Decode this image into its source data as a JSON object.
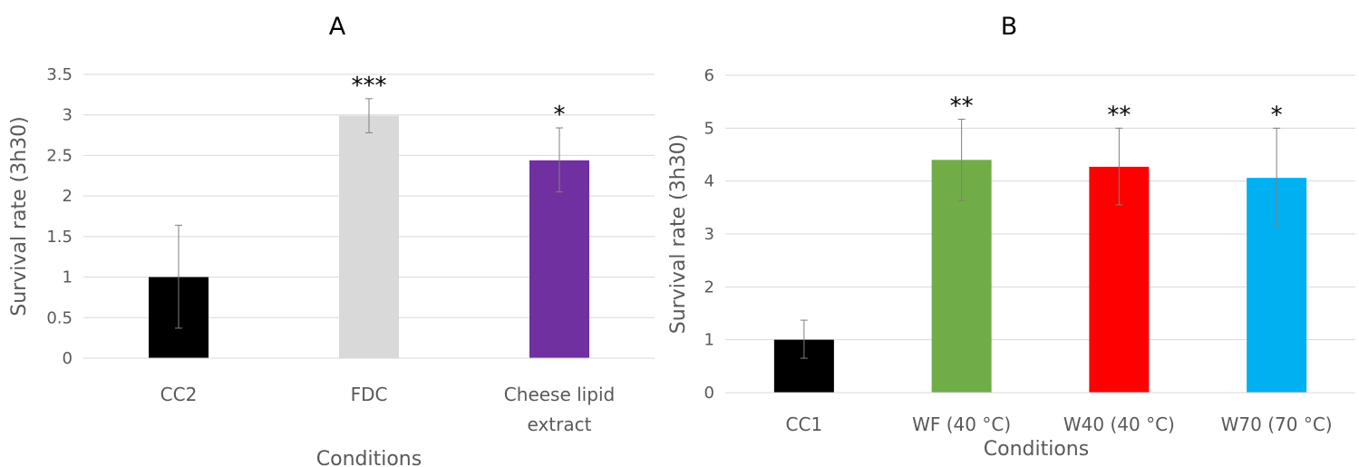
{
  "chart_data": [
    {
      "type": "bar",
      "title": "A",
      "xlabel": "Conditions",
      "ylabel": "Survival rate (3h30)",
      "ylim": [
        0,
        3.5
      ],
      "yticks": [
        "0",
        "0.5",
        "1",
        "1.5",
        "2",
        "2.5",
        "3",
        "3.5"
      ],
      "grid": true,
      "categories": [
        [
          "CC2"
        ],
        [
          "FDC"
        ],
        [
          "Cheese lipid",
          "extract"
        ]
      ],
      "values": [
        1.0,
        2.99,
        2.44
      ],
      "error_low": [
        0.37,
        2.78,
        2.05
      ],
      "error_high": [
        1.64,
        3.2,
        2.84
      ],
      "significance": [
        "",
        "***",
        "*"
      ],
      "colors": [
        "#000000",
        "#d9d9d9",
        "#7030a0"
      ]
    },
    {
      "type": "bar",
      "title": "B",
      "xlabel": "Conditions",
      "ylabel": "Survival rate (3h30)",
      "ylim": [
        0,
        6
      ],
      "yticks": [
        "0",
        "1",
        "2",
        "3",
        "4",
        "5",
        "6"
      ],
      "grid": true,
      "categories": [
        [
          "CC1"
        ],
        [
          "WF (40 °C)"
        ],
        [
          "W40 (40 °C)"
        ],
        [
          "W70 (70 °C)"
        ]
      ],
      "values": [
        1.0,
        4.4,
        4.27,
        4.06
      ],
      "error_low": [
        0.65,
        3.63,
        3.55,
        3.12
      ],
      "error_high": [
        1.37,
        5.17,
        5.0,
        5.0
      ],
      "significance": [
        "",
        "**",
        "**",
        "*"
      ],
      "colors": [
        "#000000",
        "#70ad47",
        "#ff0000",
        "#00b0f0"
      ]
    }
  ]
}
